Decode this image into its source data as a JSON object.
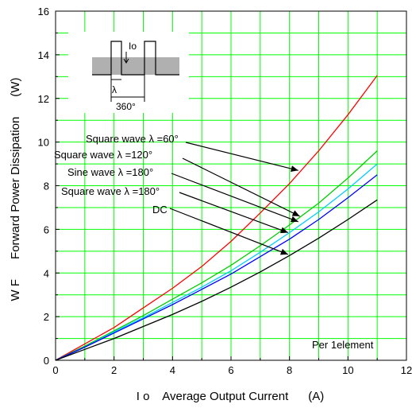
{
  "chart_data": {
    "type": "line",
    "xlabel": "I o    Average Output Current      (A)",
    "ylabel": "W F      Forward Power Dissipation      (W)",
    "xlim": [
      0,
      12
    ],
    "ylim": [
      0,
      16
    ],
    "x_ticks": [
      "0",
      "2",
      "4",
      "6",
      "8",
      "10",
      "12"
    ],
    "y_ticks": [
      "0",
      "2",
      "4",
      "6",
      "8",
      "10",
      "12",
      "14",
      "16"
    ],
    "grid": true,
    "grid_color": "#00ff00",
    "series": [
      {
        "name": "Square wave λ =60°",
        "color": "#ff0000",
        "x": [
          0,
          1,
          2,
          3,
          4,
          5,
          6,
          7,
          8,
          9,
          10,
          11
        ],
        "y": [
          0,
          0.75,
          1.5,
          2.4,
          3.3,
          4.3,
          5.45,
          6.75,
          8.1,
          9.6,
          11.25,
          13.05
        ]
      },
      {
        "name": "Square wave λ =120°",
        "color": "#00cc00",
        "x": [
          0,
          1,
          2,
          3,
          4,
          5,
          6,
          7,
          8,
          9,
          10,
          11
        ],
        "y": [
          0,
          0.65,
          1.35,
          2.05,
          2.8,
          3.55,
          4.35,
          5.25,
          6.2,
          7.2,
          8.35,
          9.6
        ]
      },
      {
        "name": "Sine wave λ =180°",
        "color": "#00ccff",
        "x": [
          0,
          1,
          2,
          3,
          4,
          5,
          6,
          7,
          8,
          9,
          10,
          11
        ],
        "y": [
          0,
          0.6,
          1.3,
          1.95,
          2.65,
          3.35,
          4.1,
          4.95,
          5.85,
          6.8,
          7.85,
          9.0
        ]
      },
      {
        "name": "Square wave λ =180°",
        "color": "#0000ff",
        "x": [
          0,
          1,
          2,
          3,
          4,
          5,
          6,
          7,
          8,
          9,
          10,
          11
        ],
        "y": [
          0,
          0.6,
          1.25,
          1.9,
          2.55,
          3.25,
          3.95,
          4.75,
          5.55,
          6.45,
          7.45,
          8.5
        ]
      },
      {
        "name": "DC",
        "color": "#000000",
        "x": [
          0,
          1,
          2,
          3,
          4,
          5,
          6,
          7,
          8,
          9,
          10,
          11
        ],
        "y": [
          0,
          0.5,
          1.0,
          1.55,
          2.1,
          2.7,
          3.35,
          4.05,
          4.8,
          5.6,
          6.45,
          7.35
        ]
      }
    ],
    "annotations": [
      {
        "text": "Square wave λ =60°",
        "target": [
          8.3,
          8.7
        ]
      },
      {
        "text": "Square wave λ =120°",
        "target": [
          8.35,
          6.6
        ]
      },
      {
        "text": "Sine wave λ =180°",
        "target": [
          8.3,
          6.35
        ]
      },
      {
        "text": "Square wave λ =180°",
        "target": [
          7.95,
          5.85
        ]
      },
      {
        "text": "DC",
        "target": [
          7.95,
          4.85
        ]
      }
    ],
    "note": "Per 1element"
  },
  "inset": {
    "io_label": "Io",
    "lambda_label": "λ",
    "period_label": "360°"
  }
}
